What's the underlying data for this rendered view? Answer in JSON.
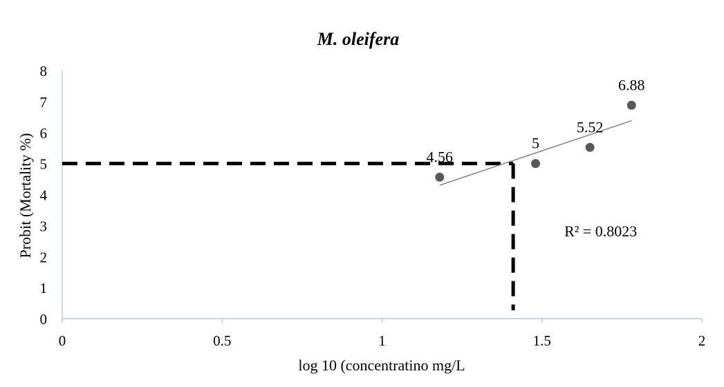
{
  "chart_data": {
    "type": "scatter",
    "title": "M. oleifera",
    "xlabel": "log 10 (concentratino mg/L",
    "ylabel": "Probit (Mortality %)",
    "xlim": [
      0,
      2
    ],
    "ylim": [
      0,
      8
    ],
    "x_ticks": [
      0,
      0.5,
      1,
      1.5,
      2
    ],
    "x_tick_labels": [
      "0",
      "0.5",
      "1",
      "1.5",
      "2"
    ],
    "y_ticks": [
      0,
      1,
      2,
      3,
      4,
      5,
      6,
      7,
      8
    ],
    "y_tick_labels": [
      "0",
      "1",
      "2",
      "3",
      "4",
      "5",
      "6",
      "7",
      "8"
    ],
    "grid": false,
    "series": [
      {
        "x": [
          1.18,
          1.48,
          1.65,
          1.78
        ],
        "y": [
          4.56,
          5.0,
          5.52,
          6.88
        ],
        "labels": [
          "4.56",
          "5",
          "5.52",
          "6.88"
        ],
        "color": "#595959"
      }
    ],
    "trendline": {
      "type": "linear",
      "x_range": [
        1.18,
        1.78
      ],
      "y_range": [
        4.3,
        6.38
      ],
      "color": "#7f7f7f",
      "annotation": "R² = 0.8023",
      "annotation_position": [
        1.57,
        2.65
      ]
    },
    "reference_lines": {
      "style": "dashed",
      "color": "#000000",
      "y_value": 5,
      "x_value": 1.41
    }
  }
}
